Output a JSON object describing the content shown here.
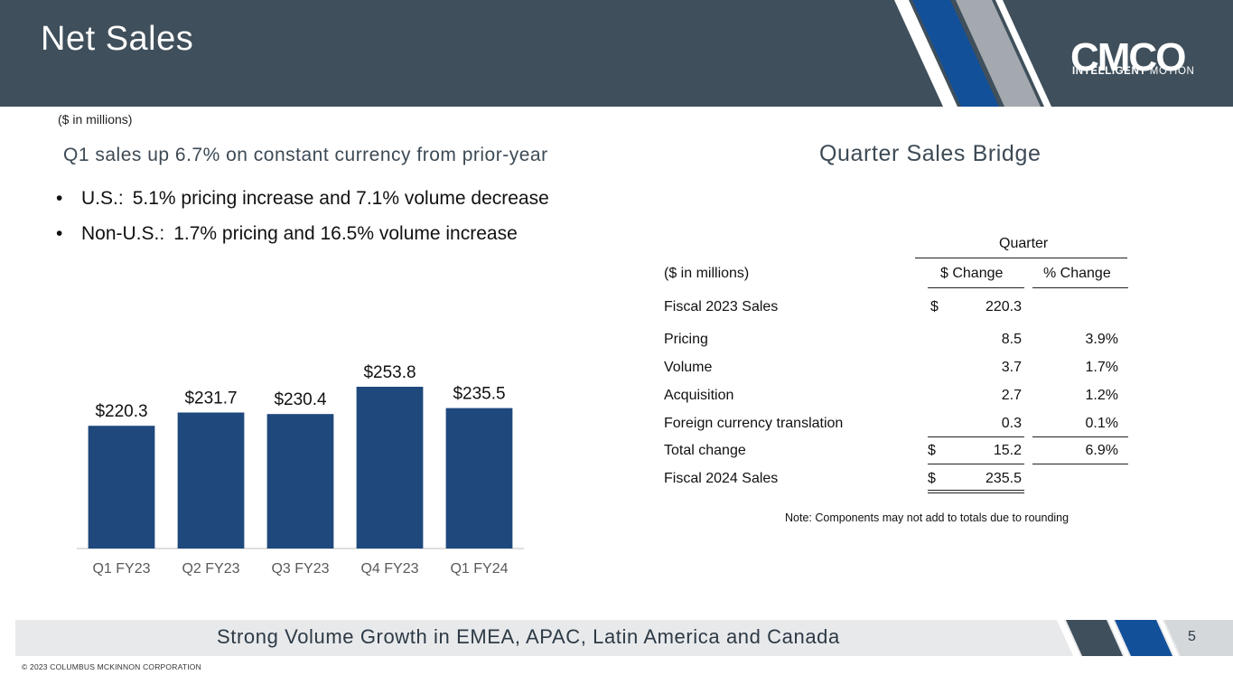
{
  "header": {
    "title": "Net Sales",
    "logo_text": "CMCO",
    "logo_tagline_bold": "INTELLIGENT",
    "logo_tagline_light": "MOTION"
  },
  "colors": {
    "header_bg": "#3f4f5b",
    "bar": "#1f497d",
    "accent_blue": "#12509a",
    "accent_gray": "#a3a9ae",
    "footer_bg": "#e8e9eb"
  },
  "units_note": "($ in millions)",
  "headline": "Q1 sales up 6.7% on constant currency from prior-year",
  "bullets": [
    {
      "bullet": "•",
      "label": "U.S.:",
      "text": "5.1% pricing increase and 7.1% volume decrease"
    },
    {
      "bullet": "•",
      "label": "Non-U.S.:",
      "text": "1.7% pricing and 16.5% volume increase"
    }
  ],
  "chart_data": {
    "type": "bar",
    "categories": [
      "Q1 FY23",
      "Q2 FY23",
      "Q3 FY23",
      "Q4 FY23",
      "Q1 FY24"
    ],
    "values": [
      220.3,
      231.7,
      230.4,
      253.8,
      235.5
    ],
    "data_labels": [
      "$220.3",
      "$231.7",
      "$230.4",
      "$253.8",
      "$235.5"
    ],
    "title": "",
    "xlabel": "",
    "ylabel": "",
    "ylim": [
      115,
      260
    ],
    "grid": false,
    "legend": "none"
  },
  "bridge": {
    "title": "Quarter Sales Bridge",
    "group_header": "Quarter",
    "units_label": "($ in millions)",
    "col_dollar": "$ Change",
    "col_pct": "% Change",
    "rows": [
      {
        "label": "Fiscal 2023 Sales",
        "currency": "$",
        "dollar": "220.3",
        "pct": ""
      },
      {
        "label": "Pricing",
        "currency": "",
        "dollar": "8.5",
        "pct": "3.9%"
      },
      {
        "label": "Volume",
        "currency": "",
        "dollar": "3.7",
        "pct": "1.7%"
      },
      {
        "label": "Acquisition",
        "currency": "",
        "dollar": "2.7",
        "pct": "1.2%"
      },
      {
        "label": "Foreign currency translation",
        "currency": "",
        "dollar": "0.3",
        "pct": "0.1%"
      },
      {
        "label": "Total change",
        "currency": "$",
        "dollar": "15.2",
        "pct": "6.9%"
      },
      {
        "label": "Fiscal 2024 Sales",
        "currency": "$",
        "dollar": "235.5",
        "pct": ""
      }
    ],
    "note": "Note: Components may not add to totals due to rounding"
  },
  "footer": {
    "text": "Strong Volume Growth in EMEA, APAC, Latin America and Canada",
    "page_number": "5",
    "copyright": "© 2023 COLUMBUS MCKINNON CORPORATION"
  }
}
